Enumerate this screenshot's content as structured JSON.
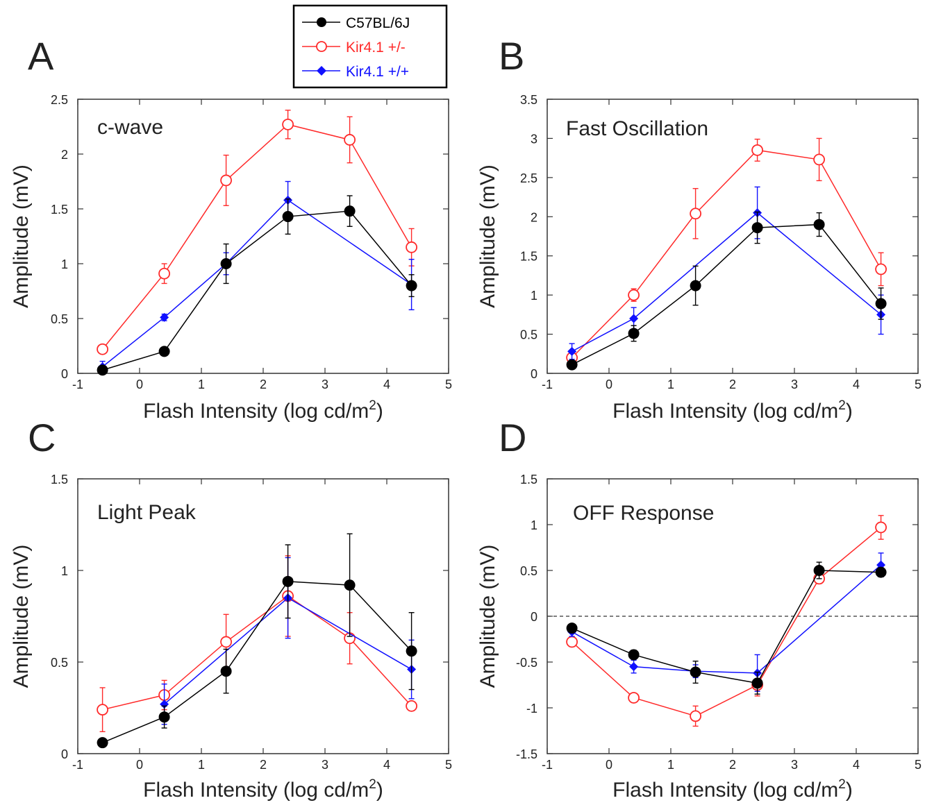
{
  "legend": {
    "entries": [
      {
        "name": "C57BL/6J",
        "color": "#000000",
        "marker": "filled-circle"
      },
      {
        "name": "Kir4.1 +/-",
        "color": "#ff2a2a",
        "marker": "open-circle"
      },
      {
        "name": "Kir4.1 +/+",
        "color": "#1010ff",
        "marker": "filled-diamond"
      }
    ]
  },
  "chart_data": [
    {
      "type": "line",
      "panel_label": "A",
      "annotation": "c-wave",
      "xlabel": "Flash Intensity (log cd/m",
      "xlabel_sup": "2",
      "xlabel_end": ")",
      "ylabel": "Amplitude (mV)",
      "xlim": [
        -1,
        5
      ],
      "ylim": [
        0,
        2.5
      ],
      "xticks": [
        "-1",
        "0",
        "1",
        "2",
        "3",
        "4",
        "5"
      ],
      "yticks": [
        "0",
        "0.5",
        "1",
        "1.5",
        "2",
        "2.5"
      ],
      "x": [
        -0.6,
        0.4,
        1.4,
        2.4,
        3.4,
        4.4
      ],
      "zero_line": false,
      "series": [
        {
          "name": "C57BL/6J",
          "values": [
            0.03,
            0.2,
            1.0,
            1.43,
            1.48,
            0.8
          ],
          "errors": [
            0.02,
            0.02,
            0.18,
            0.16,
            0.14,
            0.1
          ]
        },
        {
          "name": "Kir4.1 +/-",
          "values": [
            0.22,
            0.91,
            1.76,
            2.27,
            2.13,
            1.15
          ],
          "errors": [
            0.03,
            0.09,
            0.23,
            0.13,
            0.21,
            0.17
          ]
        },
        {
          "name": "Kir4.1 +/+",
          "values": [
            0.06,
            0.51,
            1.0,
            1.58,
            null,
            0.81
          ],
          "errors": [
            0.05,
            0.03,
            0.1,
            0.17,
            null,
            0.23
          ]
        }
      ]
    },
    {
      "type": "line",
      "panel_label": "B",
      "annotation": "Fast Oscillation",
      "xlabel": "Flash Intensity (log cd/m",
      "xlabel_sup": "2",
      "xlabel_end": ")",
      "ylabel": "Amplitude (mV)",
      "xlim": [
        -1,
        5
      ],
      "ylim": [
        0,
        3.5
      ],
      "xticks": [
        "-1",
        "0",
        "1",
        "2",
        "3",
        "4",
        "5"
      ],
      "yticks": [
        "0",
        "0.5",
        "1",
        "1.5",
        "2",
        "2.5",
        "3",
        "3.5"
      ],
      "x": [
        -0.6,
        0.4,
        1.4,
        2.4,
        3.4,
        4.4
      ],
      "zero_line": false,
      "series": [
        {
          "name": "C57BL/6J",
          "values": [
            0.11,
            0.51,
            1.12,
            1.86,
            1.9,
            0.89
          ],
          "errors": [
            0.04,
            0.1,
            0.25,
            0.2,
            0.15,
            0.2
          ]
        },
        {
          "name": "Kir4.1 +/-",
          "values": [
            0.2,
            1.0,
            2.04,
            2.85,
            2.73,
            1.33
          ],
          "errors": [
            0.04,
            0.08,
            0.32,
            0.14,
            0.27,
            0.21
          ]
        },
        {
          "name": "Kir4.1 +/+",
          "values": [
            0.28,
            0.7,
            null,
            2.05,
            null,
            0.75
          ],
          "errors": [
            0.1,
            0.14,
            null,
            0.33,
            null,
            0.25
          ]
        }
      ]
    },
    {
      "type": "line",
      "panel_label": "C",
      "annotation": "Light Peak",
      "xlabel": "Flash Intensity (log cd/m",
      "xlabel_sup": "2",
      "xlabel_end": ")",
      "ylabel": "Amplitude (mV)",
      "xlim": [
        -1,
        5
      ],
      "ylim": [
        0,
        1.5
      ],
      "xticks": [
        "-1",
        "0",
        "1",
        "2",
        "3",
        "4",
        "5"
      ],
      "yticks": [
        "0",
        "0.5",
        "1",
        "1.5"
      ],
      "x": [
        -0.6,
        0.4,
        1.4,
        2.4,
        3.4,
        4.4
      ],
      "zero_line": false,
      "series": [
        {
          "name": "C57BL/6J",
          "values": [
            0.06,
            0.2,
            0.45,
            0.94,
            0.92,
            0.56
          ],
          "errors": [
            0.01,
            0.06,
            0.12,
            0.2,
            0.28,
            0.21
          ]
        },
        {
          "name": "Kir4.1 +/-",
          "values": [
            0.24,
            0.32,
            0.61,
            0.86,
            0.63,
            0.26
          ],
          "errors": [
            0.12,
            0.08,
            0.15,
            0.22,
            0.14,
            0.02
          ]
        },
        {
          "name": "Kir4.1 +/+",
          "values": [
            null,
            0.27,
            null,
            0.85,
            null,
            0.46
          ],
          "errors": [
            null,
            0.11,
            null,
            0.22,
            null,
            0.16
          ]
        }
      ]
    },
    {
      "type": "line",
      "panel_label": "D",
      "annotation": "OFF Response",
      "xlabel": "Flash Intensity (log cd/m",
      "xlabel_sup": "2",
      "xlabel_end": ")",
      "ylabel": "Amplitude (mV)",
      "xlim": [
        -1,
        5
      ],
      "ylim": [
        -1.5,
        1.5
      ],
      "xticks": [
        "-1",
        "0",
        "1",
        "2",
        "3",
        "4",
        "5"
      ],
      "yticks": [
        "-1.5",
        "-1",
        "-0.5",
        "0",
        "0.5",
        "1",
        "1.5"
      ],
      "x": [
        -0.6,
        0.4,
        1.4,
        2.4,
        3.4,
        4.4
      ],
      "zero_line": true,
      "series": [
        {
          "name": "C57BL/6J",
          "values": [
            -0.13,
            -0.42,
            -0.61,
            -0.73,
            0.5,
            0.48
          ],
          "errors": [
            0.03,
            0.05,
            0.12,
            0.12,
            0.09,
            0.05
          ]
        },
        {
          "name": "Kir4.1 +/-",
          "values": [
            -0.28,
            -0.89,
            -1.09,
            -0.75,
            0.41,
            0.97
          ],
          "errors": [
            0.05,
            0.04,
            0.11,
            0.12,
            0.05,
            0.13
          ]
        },
        {
          "name": "Kir4.1 +/+",
          "values": [
            -0.17,
            -0.55,
            -0.6,
            -0.62,
            null,
            0.56
          ],
          "errors": [
            0.05,
            0.07,
            0.07,
            0.2,
            null,
            0.13
          ]
        }
      ]
    }
  ]
}
